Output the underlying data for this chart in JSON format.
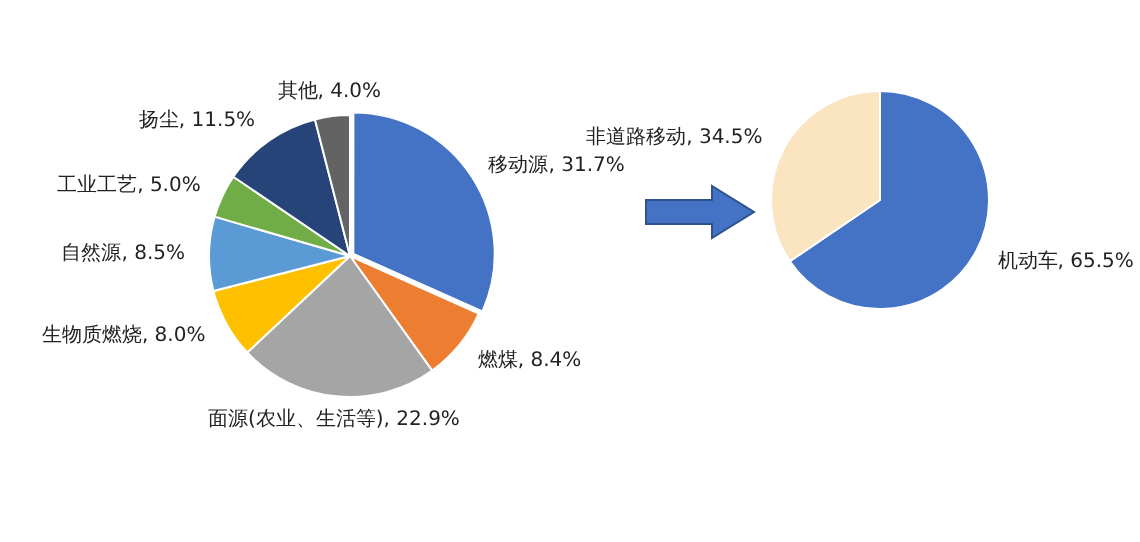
{
  "chart_data": [
    {
      "type": "pie",
      "categories": [
        "移动源",
        "燃煤",
        "面源(农业、生活等)",
        "生物质燃烧",
        "自然源",
        "工业工艺",
        "扬尘",
        "其他"
      ],
      "values": [
        31.7,
        8.4,
        22.9,
        8.0,
        8.5,
        5.0,
        11.5,
        4.0
      ],
      "colors": [
        "#4472c4",
        "#ed7d31",
        "#a5a5a5",
        "#ffc000",
        "#5b9bd5",
        "#70ad47",
        "#264478",
        "#636363"
      ],
      "value_labels": [
        "31.7%",
        "8.4%",
        "22.9%",
        "8.0%",
        "8.5%",
        "5.0%",
        "11.5%",
        "4.0%"
      ],
      "legend": false
    },
    {
      "type": "pie",
      "categories": [
        "机动车",
        "非道路移动"
      ],
      "values": [
        65.5,
        34.5
      ],
      "colors": [
        "#4472c4",
        "#fbe5c0"
      ],
      "value_labels": [
        "65.5%",
        "34.5%"
      ],
      "legend": false
    }
  ]
}
